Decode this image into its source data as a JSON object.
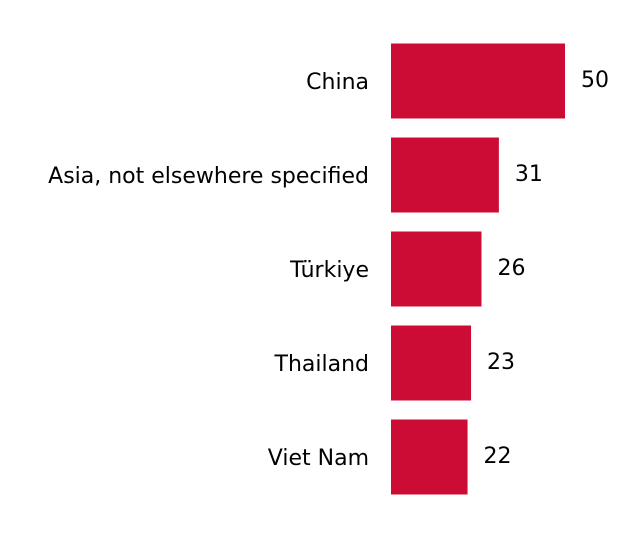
{
  "chart_data": {
    "type": "bar",
    "orientation": "horizontal",
    "categories": [
      "China",
      "Asia, not elsewhere specified",
      "Türkiye",
      "Thailand",
      "Viet Nam"
    ],
    "values": [
      50,
      31,
      26,
      23,
      22
    ],
    "color": "#cc0c35"
  }
}
